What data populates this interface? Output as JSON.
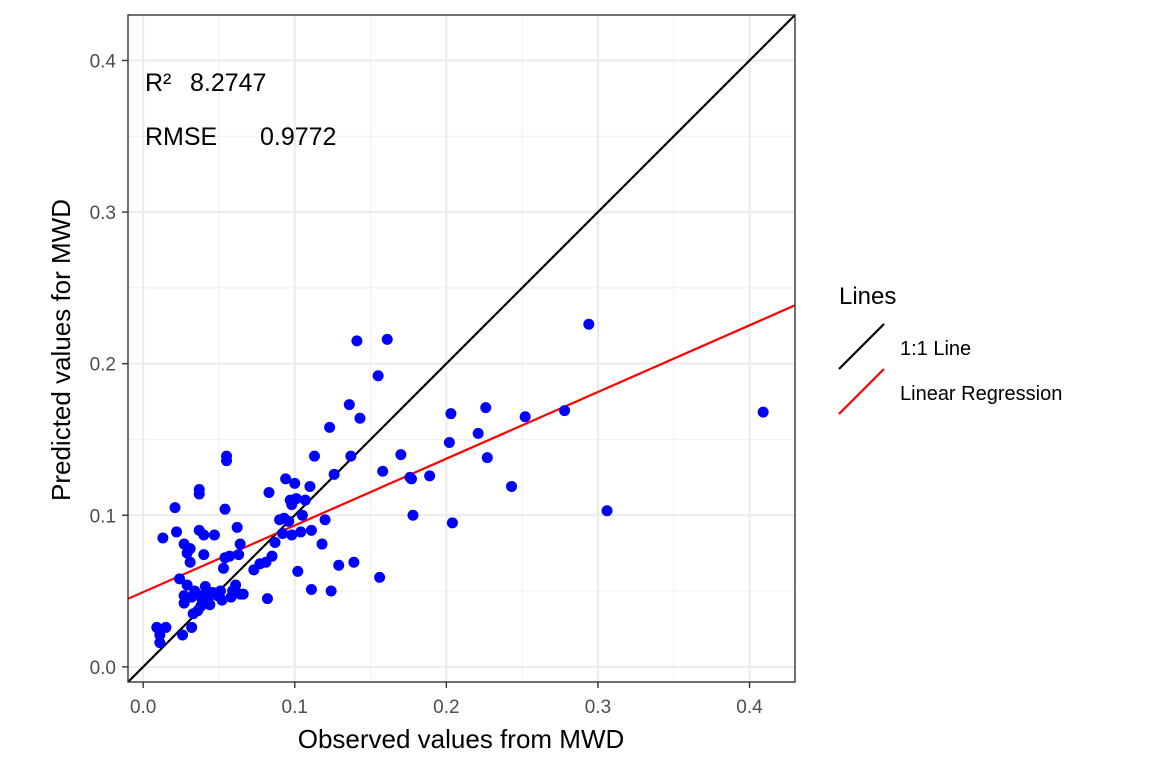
{
  "chart_data": {
    "type": "scatter",
    "title": "",
    "xlabel": "Observed values from MWD",
    "ylabel": "Predicted values for MWD",
    "xlim": [
      -0.01,
      0.43
    ],
    "ylim": [
      -0.01,
      0.43
    ],
    "x_ticks": [
      0.0,
      0.1,
      0.2,
      0.3,
      0.4
    ],
    "y_ticks": [
      0.0,
      0.1,
      0.2,
      0.3,
      0.4
    ],
    "x_tick_labels": [
      "0.0",
      "0.1",
      "0.2",
      "0.3",
      "0.4"
    ],
    "y_tick_labels": [
      "0.0",
      "0.1",
      "0.2",
      "0.3",
      "0.4"
    ],
    "grid": true,
    "annotations": {
      "r2_label": "R²",
      "r2_value": "8.2747",
      "rmse_label": "RMSE",
      "rmse_value": "0.9772"
    },
    "point_color": "#0000ff",
    "legend": {
      "title": "Lines",
      "position": "right",
      "entries": [
        {
          "label": "1:1 Line",
          "color": "#000000"
        },
        {
          "label": "Linear Regression",
          "color": "#ff0000"
        }
      ]
    },
    "lines": {
      "identity": {
        "slope": 1.0,
        "intercept": 0.0,
        "color": "#000000"
      },
      "regression": {
        "slope": 0.44,
        "intercept": 0.0493,
        "color": "#ff0000"
      }
    },
    "points": [
      [
        0.009,
        0.026
      ],
      [
        0.011,
        0.021
      ],
      [
        0.011,
        0.016
      ],
      [
        0.013,
        0.085
      ],
      [
        0.015,
        0.026
      ],
      [
        0.021,
        0.105
      ],
      [
        0.022,
        0.089
      ],
      [
        0.024,
        0.058
      ],
      [
        0.026,
        0.021
      ],
      [
        0.027,
        0.081
      ],
      [
        0.027,
        0.047
      ],
      [
        0.027,
        0.042
      ],
      [
        0.029,
        0.075
      ],
      [
        0.029,
        0.054
      ],
      [
        0.031,
        0.069
      ],
      [
        0.031,
        0.078
      ],
      [
        0.032,
        0.046
      ],
      [
        0.032,
        0.026
      ],
      [
        0.033,
        0.035
      ],
      [
        0.034,
        0.05
      ],
      [
        0.036,
        0.037
      ],
      [
        0.037,
        0.09
      ],
      [
        0.037,
        0.117
      ],
      [
        0.037,
        0.114
      ],
      [
        0.038,
        0.047
      ],
      [
        0.038,
        0.04
      ],
      [
        0.039,
        0.044
      ],
      [
        0.04,
        0.087
      ],
      [
        0.04,
        0.074
      ],
      [
        0.041,
        0.053
      ],
      [
        0.042,
        0.05
      ],
      [
        0.043,
        0.046
      ],
      [
        0.044,
        0.041
      ],
      [
        0.046,
        0.049
      ],
      [
        0.047,
        0.087
      ],
      [
        0.049,
        0.047
      ],
      [
        0.051,
        0.05
      ],
      [
        0.052,
        0.044
      ],
      [
        0.053,
        0.065
      ],
      [
        0.054,
        0.072
      ],
      [
        0.054,
        0.104
      ],
      [
        0.055,
        0.139
      ],
      [
        0.055,
        0.136
      ],
      [
        0.057,
        0.073
      ],
      [
        0.058,
        0.046
      ],
      [
        0.059,
        0.05
      ],
      [
        0.061,
        0.054
      ],
      [
        0.062,
        0.092
      ],
      [
        0.063,
        0.074
      ],
      [
        0.064,
        0.081
      ],
      [
        0.064,
        0.048
      ],
      [
        0.066,
        0.048
      ],
      [
        0.073,
        0.064
      ],
      [
        0.077,
        0.068
      ],
      [
        0.081,
        0.069
      ],
      [
        0.082,
        0.045
      ],
      [
        0.083,
        0.115
      ],
      [
        0.085,
        0.073
      ],
      [
        0.087,
        0.082
      ],
      [
        0.09,
        0.097
      ],
      [
        0.092,
        0.088
      ],
      [
        0.093,
        0.098
      ],
      [
        0.094,
        0.124
      ],
      [
        0.096,
        0.096
      ],
      [
        0.097,
        0.11
      ],
      [
        0.098,
        0.087
      ],
      [
        0.098,
        0.107
      ],
      [
        0.1,
        0.121
      ],
      [
        0.101,
        0.111
      ],
      [
        0.102,
        0.063
      ],
      [
        0.104,
        0.089
      ],
      [
        0.105,
        0.1
      ],
      [
        0.107,
        0.11
      ],
      [
        0.11,
        0.119
      ],
      [
        0.111,
        0.09
      ],
      [
        0.111,
        0.051
      ],
      [
        0.113,
        0.139
      ],
      [
        0.118,
        0.081
      ],
      [
        0.12,
        0.097
      ],
      [
        0.123,
        0.158
      ],
      [
        0.124,
        0.05
      ],
      [
        0.126,
        0.127
      ],
      [
        0.129,
        0.067
      ],
      [
        0.136,
        0.173
      ],
      [
        0.137,
        0.139
      ],
      [
        0.139,
        0.069
      ],
      [
        0.141,
        0.215
      ],
      [
        0.143,
        0.164
      ],
      [
        0.155,
        0.192
      ],
      [
        0.156,
        0.059
      ],
      [
        0.158,
        0.129
      ],
      [
        0.161,
        0.216
      ],
      [
        0.17,
        0.14
      ],
      [
        0.176,
        0.125
      ],
      [
        0.177,
        0.124
      ],
      [
        0.178,
        0.1
      ],
      [
        0.189,
        0.126
      ],
      [
        0.202,
        0.148
      ],
      [
        0.203,
        0.167
      ],
      [
        0.204,
        0.095
      ],
      [
        0.221,
        0.154
      ],
      [
        0.226,
        0.171
      ],
      [
        0.227,
        0.138
      ],
      [
        0.243,
        0.119
      ],
      [
        0.252,
        0.165
      ],
      [
        0.278,
        0.169
      ],
      [
        0.294,
        0.226
      ],
      [
        0.306,
        0.103
      ],
      [
        0.409,
        0.168
      ]
    ]
  }
}
